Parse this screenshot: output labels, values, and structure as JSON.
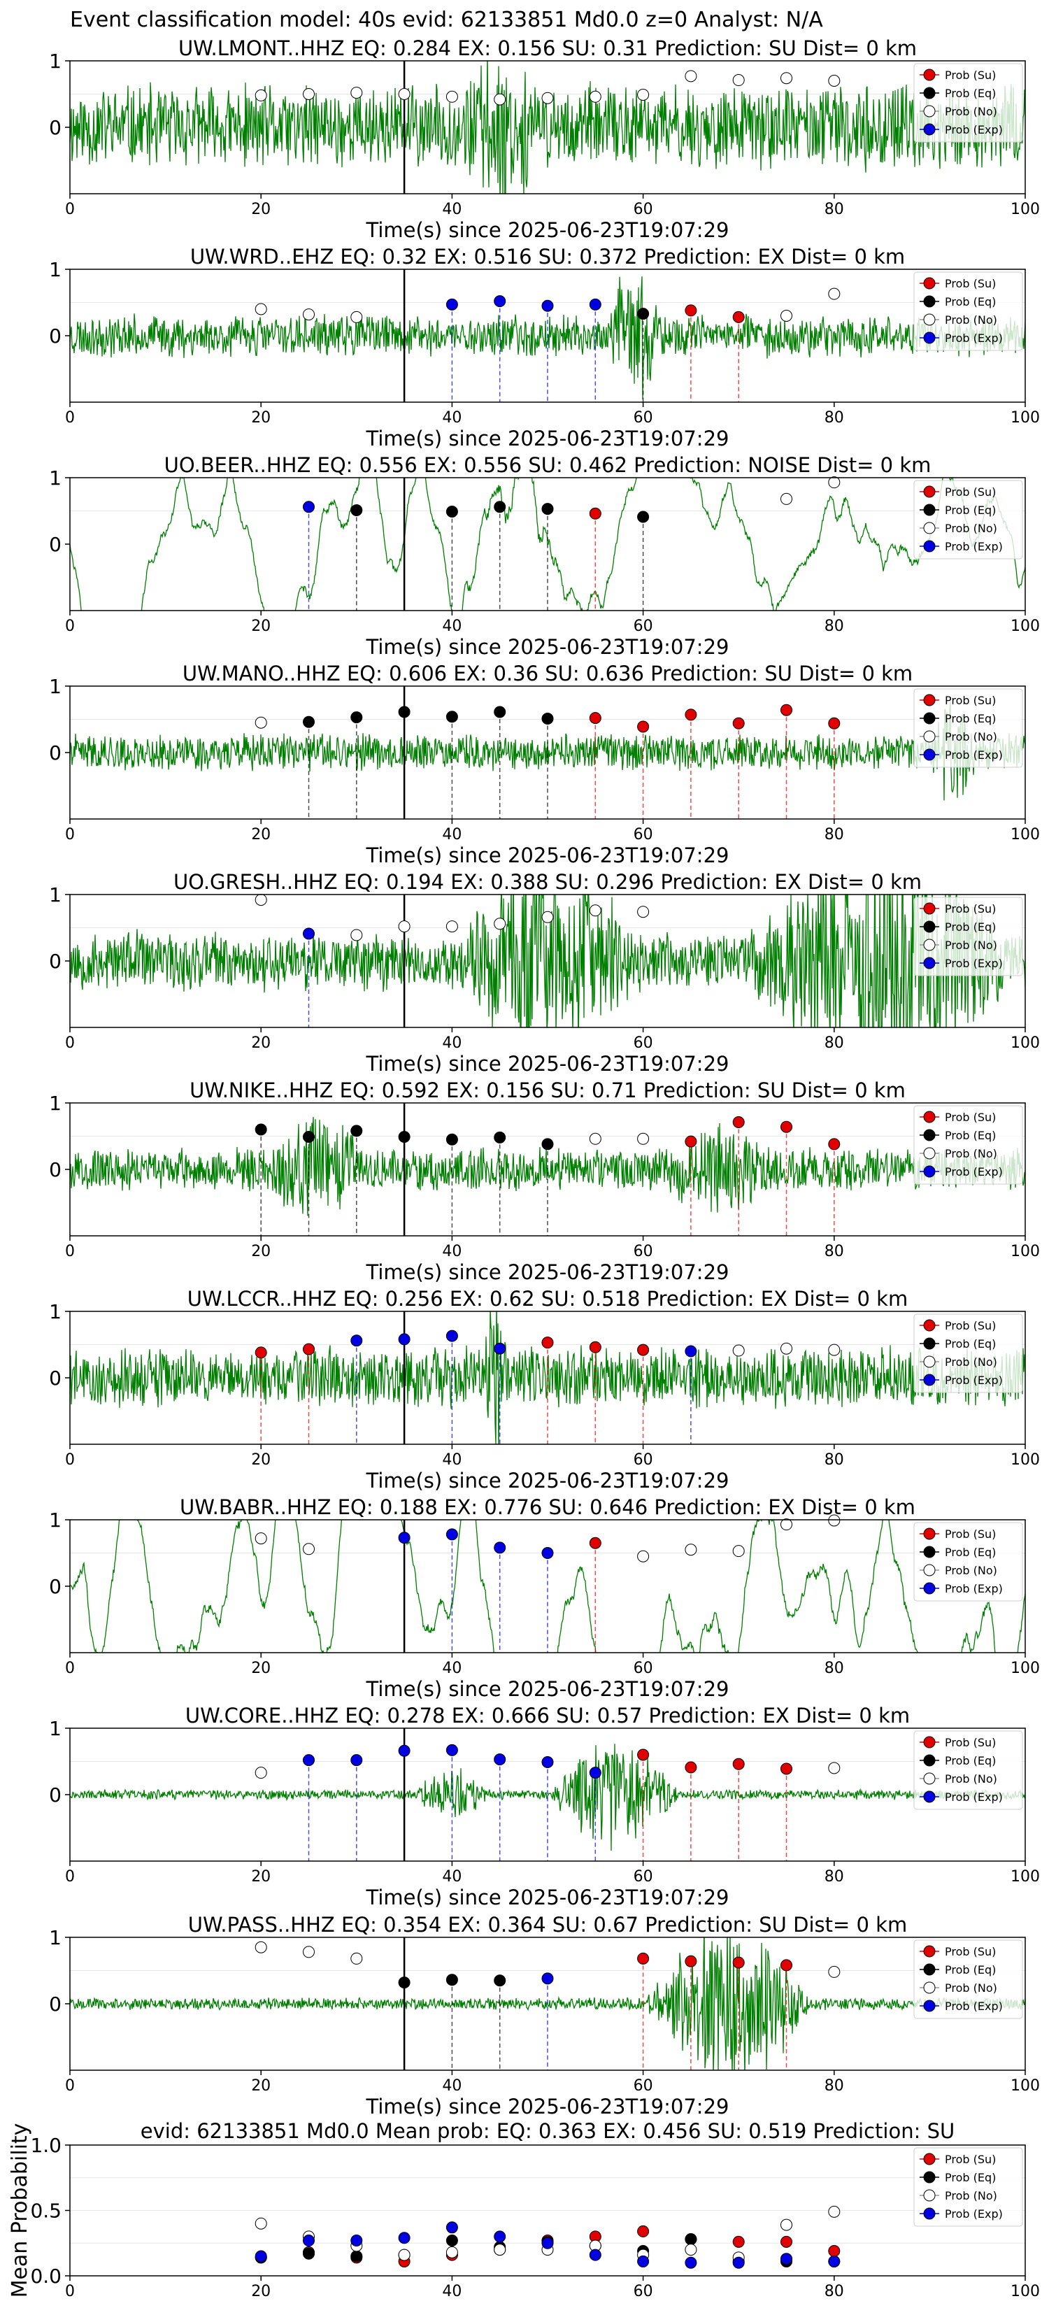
{
  "figure": {
    "suptitle": "Event classification model: 40s evid: 62133851 Md0.0 z=0 Analyst: N/A",
    "xlabel": "Time(s) since 2025-06-23T19:07:29",
    "legend": [
      {
        "label": "Prob (Su)",
        "face": "#e00000"
      },
      {
        "label": "Prob (Eq)",
        "face": "#000000"
      },
      {
        "label": "Prob (No)",
        "face": "#ffffff"
      },
      {
        "label": "Prob (Exp)",
        "face": "#0000e0"
      }
    ],
    "colors": {
      "waveform": "#008000",
      "su": "#e00000",
      "eq": "#000000",
      "no": "#ffffff",
      "exp": "#0000e0",
      "pick": "#000000"
    }
  },
  "chart_data": [
    {
      "type": "line",
      "station": "UW.LMONT..HHZ",
      "title": "UW.LMONT..HHZ   EQ: 0.284  EX: 0.156  SU: 0.31   Prediction: SU    Dist= 0 km",
      "xlim": [
        0,
        100
      ],
      "x_ticks": [
        0,
        20,
        40,
        60,
        80,
        100
      ],
      "y_ticks": [
        0,
        1
      ],
      "pick_time": 35,
      "wave": {
        "amp": 0.7,
        "style": "noise",
        "seed": 11,
        "bursts": [
          [
            40,
            50,
            1.0
          ]
        ]
      },
      "points": [
        {
          "t": 20,
          "cls": "no",
          "p": 0.48
        },
        {
          "t": 25,
          "cls": "no",
          "p": 0.5
        },
        {
          "t": 30,
          "cls": "no",
          "p": 0.52
        },
        {
          "t": 35,
          "cls": "no",
          "p": 0.5
        },
        {
          "t": 40,
          "cls": "no",
          "p": 0.46
        },
        {
          "t": 45,
          "cls": "no",
          "p": 0.42
        },
        {
          "t": 50,
          "cls": "no",
          "p": 0.44
        },
        {
          "t": 55,
          "cls": "no",
          "p": 0.46
        },
        {
          "t": 60,
          "cls": "no",
          "p": 0.49
        },
        {
          "t": 65,
          "cls": "no",
          "p": 0.77
        },
        {
          "t": 70,
          "cls": "no",
          "p": 0.71
        },
        {
          "t": 75,
          "cls": "no",
          "p": 0.74
        },
        {
          "t": 80,
          "cls": "no",
          "p": 0.7
        }
      ]
    },
    {
      "type": "line",
      "station": "UW.WRD..EHZ",
      "title": "UW.WRD..EHZ   EQ: 0.32  EX: 0.516  SU: 0.372   Prediction: EX    Dist= 0 km",
      "xlim": [
        0,
        100
      ],
      "x_ticks": [
        0,
        20,
        40,
        60,
        80,
        100
      ],
      "y_ticks": [
        0,
        1
      ],
      "pick_time": 35,
      "wave": {
        "amp": 0.35,
        "style": "noise",
        "seed": 23,
        "bursts": [
          [
            56,
            62,
            1.1
          ]
        ]
      },
      "points": [
        {
          "t": 20,
          "cls": "no",
          "p": 0.4
        },
        {
          "t": 25,
          "cls": "no",
          "p": 0.32
        },
        {
          "t": 30,
          "cls": "no",
          "p": 0.28
        },
        {
          "t": 40,
          "cls": "exp",
          "p": 0.47
        },
        {
          "t": 45,
          "cls": "exp",
          "p": 0.52
        },
        {
          "t": 50,
          "cls": "exp",
          "p": 0.45
        },
        {
          "t": 55,
          "cls": "exp",
          "p": 0.47
        },
        {
          "t": 60,
          "cls": "eq",
          "p": 0.33
        },
        {
          "t": 65,
          "cls": "su",
          "p": 0.38
        },
        {
          "t": 70,
          "cls": "su",
          "p": 0.28
        },
        {
          "t": 75,
          "cls": "no",
          "p": 0.3
        },
        {
          "t": 80,
          "cls": "no",
          "p": 0.63
        }
      ]
    },
    {
      "type": "line",
      "station": "UO.BEER..HHZ",
      "title": "UO.BEER..HHZ   EQ: 0.556  EX: 0.556  SU: 0.462   Prediction: NOISE    Dist= 0 km",
      "xlim": [
        0,
        100
      ],
      "x_ticks": [
        0,
        20,
        40,
        60,
        80,
        100
      ],
      "y_ticks": [
        0,
        1
      ],
      "pick_time": 35,
      "wave": {
        "amp": 0.55,
        "style": "smooth",
        "seed": 37,
        "bursts": [
          [
            38,
            55,
            0.9
          ]
        ]
      },
      "points": [
        {
          "t": 25,
          "cls": "exp",
          "p": 0.56
        },
        {
          "t": 30,
          "cls": "eq",
          "p": 0.51
        },
        {
          "t": 40,
          "cls": "eq",
          "p": 0.49
        },
        {
          "t": 45,
          "cls": "eq",
          "p": 0.56
        },
        {
          "t": 50,
          "cls": "eq",
          "p": 0.53
        },
        {
          "t": 55,
          "cls": "su",
          "p": 0.46
        },
        {
          "t": 60,
          "cls": "eq",
          "p": 0.41
        },
        {
          "t": 75,
          "cls": "no",
          "p": 0.68
        },
        {
          "t": 80,
          "cls": "no",
          "p": 0.93
        }
      ]
    },
    {
      "type": "line",
      "station": "UW.MANO..HHZ",
      "title": "UW.MANO..HHZ   EQ: 0.606  EX: 0.36  SU: 0.636   Prediction: SU    Dist= 0 km",
      "xlim": [
        0,
        100
      ],
      "x_ticks": [
        0,
        20,
        40,
        60,
        80,
        100
      ],
      "y_ticks": [
        0,
        1
      ],
      "pick_time": 35,
      "wave": {
        "amp": 0.3,
        "style": "noise",
        "seed": 41,
        "bursts": [
          [
            90,
            95,
            0.9
          ]
        ]
      },
      "points": [
        {
          "t": 20,
          "cls": "no",
          "p": 0.45
        },
        {
          "t": 25,
          "cls": "eq",
          "p": 0.46
        },
        {
          "t": 30,
          "cls": "eq",
          "p": 0.53
        },
        {
          "t": 35,
          "cls": "eq",
          "p": 0.61
        },
        {
          "t": 40,
          "cls": "eq",
          "p": 0.54
        },
        {
          "t": 45,
          "cls": "eq",
          "p": 0.61
        },
        {
          "t": 50,
          "cls": "eq",
          "p": 0.51
        },
        {
          "t": 55,
          "cls": "su",
          "p": 0.52
        },
        {
          "t": 60,
          "cls": "su",
          "p": 0.39
        },
        {
          "t": 65,
          "cls": "su",
          "p": 0.57
        },
        {
          "t": 70,
          "cls": "su",
          "p": 0.44
        },
        {
          "t": 75,
          "cls": "su",
          "p": 0.64
        },
        {
          "t": 80,
          "cls": "su",
          "p": 0.44
        }
      ]
    },
    {
      "type": "line",
      "station": "UO.GRESH..HHZ",
      "title": "UO.GRESH..HHZ   EQ: 0.194  EX: 0.388  SU: 0.296   Prediction: EX    Dist= 0 km",
      "xlim": [
        0,
        100
      ],
      "x_ticks": [
        0,
        20,
        40,
        60,
        80,
        100
      ],
      "y_ticks": [
        0,
        1
      ],
      "pick_time": 35,
      "wave": {
        "amp": 0.5,
        "style": "noise",
        "seed": 53,
        "bursts": [
          [
            40,
            60,
            1.6
          ],
          [
            70,
            100,
            1.8
          ]
        ]
      },
      "points": [
        {
          "t": 20,
          "cls": "no",
          "p": 0.92
        },
        {
          "t": 25,
          "cls": "exp",
          "p": 0.41
        },
        {
          "t": 30,
          "cls": "no",
          "p": 0.39
        },
        {
          "t": 35,
          "cls": "no",
          "p": 0.52
        },
        {
          "t": 40,
          "cls": "no",
          "p": 0.52
        },
        {
          "t": 45,
          "cls": "no",
          "p": 0.56
        },
        {
          "t": 50,
          "cls": "no",
          "p": 0.66
        },
        {
          "t": 55,
          "cls": "no",
          "p": 0.76
        },
        {
          "t": 60,
          "cls": "no",
          "p": 0.74
        }
      ]
    },
    {
      "type": "line",
      "station": "UW.NIKE..HHZ",
      "title": "UW.NIKE..HHZ   EQ: 0.592  EX: 0.156  SU: 0.71   Prediction: SU    Dist= 0 km",
      "xlim": [
        0,
        100
      ],
      "x_ticks": [
        0,
        20,
        40,
        60,
        80,
        100
      ],
      "y_ticks": [
        0,
        1
      ],
      "pick_time": 35,
      "wave": {
        "amp": 0.35,
        "style": "noise",
        "seed": 67,
        "bursts": [
          [
            20,
            32,
            0.7
          ],
          [
            60,
            75,
            0.6
          ]
        ]
      },
      "points": [
        {
          "t": 20,
          "cls": "eq",
          "p": 0.6
        },
        {
          "t": 25,
          "cls": "eq",
          "p": 0.49
        },
        {
          "t": 30,
          "cls": "eq",
          "p": 0.58
        },
        {
          "t": 35,
          "cls": "eq",
          "p": 0.49
        },
        {
          "t": 40,
          "cls": "eq",
          "p": 0.45
        },
        {
          "t": 45,
          "cls": "eq",
          "p": 0.48
        },
        {
          "t": 50,
          "cls": "eq",
          "p": 0.38
        },
        {
          "t": 55,
          "cls": "no",
          "p": 0.46
        },
        {
          "t": 60,
          "cls": "no",
          "p": 0.46
        },
        {
          "t": 65,
          "cls": "su",
          "p": 0.42
        },
        {
          "t": 70,
          "cls": "su",
          "p": 0.71
        },
        {
          "t": 75,
          "cls": "su",
          "p": 0.64
        },
        {
          "t": 80,
          "cls": "su",
          "p": 0.38
        }
      ]
    },
    {
      "type": "line",
      "station": "UW.LCCR..HHZ",
      "title": "UW.LCCR..HHZ   EQ: 0.256  EX: 0.62  SU: 0.518   Prediction: EX    Dist= 0 km",
      "xlim": [
        0,
        100
      ],
      "x_ticks": [
        0,
        20,
        40,
        60,
        80,
        100
      ],
      "y_ticks": [
        0,
        1
      ],
      "pick_time": 35,
      "wave": {
        "amp": 0.5,
        "style": "noise",
        "seed": 79,
        "bursts": [
          [
            43,
            46,
            1.2
          ]
        ]
      },
      "points": [
        {
          "t": 20,
          "cls": "su",
          "p": 0.38
        },
        {
          "t": 25,
          "cls": "su",
          "p": 0.43
        },
        {
          "t": 30,
          "cls": "exp",
          "p": 0.56
        },
        {
          "t": 35,
          "cls": "exp",
          "p": 0.58
        },
        {
          "t": 40,
          "cls": "exp",
          "p": 0.63
        },
        {
          "t": 45,
          "cls": "exp",
          "p": 0.44
        },
        {
          "t": 50,
          "cls": "su",
          "p": 0.53
        },
        {
          "t": 55,
          "cls": "su",
          "p": 0.46
        },
        {
          "t": 60,
          "cls": "su",
          "p": 0.42
        },
        {
          "t": 65,
          "cls": "exp",
          "p": 0.4
        },
        {
          "t": 70,
          "cls": "no",
          "p": 0.41
        },
        {
          "t": 75,
          "cls": "no",
          "p": 0.44
        },
        {
          "t": 80,
          "cls": "no",
          "p": 0.42
        }
      ]
    },
    {
      "type": "line",
      "station": "UW.BABR..HHZ",
      "title": "UW.BABR..HHZ   EQ: 0.188  EX: 0.776  SU: 0.646   Prediction: EX    Dist= 0 km",
      "xlim": [
        0,
        100
      ],
      "x_ticks": [
        0,
        20,
        40,
        60,
        80,
        100
      ],
      "y_ticks": [
        0,
        1
      ],
      "pick_time": 35,
      "wave": {
        "amp": 0.7,
        "style": "smooth",
        "seed": 83,
        "bursts": []
      },
      "points": [
        {
          "t": 20,
          "cls": "no",
          "p": 0.72
        },
        {
          "t": 25,
          "cls": "no",
          "p": 0.56
        },
        {
          "t": 35,
          "cls": "exp",
          "p": 0.73
        },
        {
          "t": 40,
          "cls": "exp",
          "p": 0.78
        },
        {
          "t": 45,
          "cls": "exp",
          "p": 0.58
        },
        {
          "t": 50,
          "cls": "exp",
          "p": 0.5
        },
        {
          "t": 55,
          "cls": "su",
          "p": 0.65
        },
        {
          "t": 60,
          "cls": "no",
          "p": 0.45
        },
        {
          "t": 65,
          "cls": "no",
          "p": 0.55
        },
        {
          "t": 70,
          "cls": "no",
          "p": 0.53
        },
        {
          "t": 75,
          "cls": "no",
          "p": 0.93
        },
        {
          "t": 80,
          "cls": "no",
          "p": 0.99
        }
      ]
    },
    {
      "type": "line",
      "station": "UW.CORE..HHZ",
      "title": "UW.CORE..HHZ   EQ: 0.278  EX: 0.666  SU: 0.57   Prediction: EX    Dist= 0 km",
      "xlim": [
        0,
        100
      ],
      "x_ticks": [
        0,
        20,
        40,
        60,
        80,
        100
      ],
      "y_ticks": [
        0,
        1
      ],
      "pick_time": 35,
      "wave": {
        "amp": 0.08,
        "style": "noise",
        "seed": 97,
        "bursts": [
          [
            36,
            44,
            0.4
          ],
          [
            50,
            64,
            1.0
          ]
        ]
      },
      "points": [
        {
          "t": 20,
          "cls": "no",
          "p": 0.33
        },
        {
          "t": 25,
          "cls": "exp",
          "p": 0.52
        },
        {
          "t": 30,
          "cls": "exp",
          "p": 0.52
        },
        {
          "t": 35,
          "cls": "exp",
          "p": 0.66
        },
        {
          "t": 40,
          "cls": "exp",
          "p": 0.67
        },
        {
          "t": 45,
          "cls": "exp",
          "p": 0.53
        },
        {
          "t": 50,
          "cls": "exp",
          "p": 0.49
        },
        {
          "t": 55,
          "cls": "exp",
          "p": 0.33
        },
        {
          "t": 60,
          "cls": "su",
          "p": 0.6
        },
        {
          "t": 65,
          "cls": "su",
          "p": 0.41
        },
        {
          "t": 70,
          "cls": "su",
          "p": 0.46
        },
        {
          "t": 75,
          "cls": "su",
          "p": 0.39
        },
        {
          "t": 80,
          "cls": "no",
          "p": 0.4
        }
      ]
    },
    {
      "type": "line",
      "station": "UW.PASS..HHZ",
      "title": "UW.PASS..HHZ   EQ: 0.354  EX: 0.364  SU: 0.67   Prediction: SU    Dist= 0 km",
      "xlim": [
        0,
        100
      ],
      "x_ticks": [
        0,
        20,
        40,
        60,
        80,
        100
      ],
      "y_ticks": [
        0,
        1
      ],
      "pick_time": 35,
      "wave": {
        "amp": 0.1,
        "style": "noise",
        "seed": 101,
        "bursts": [
          [
            60,
            78,
            1.3
          ]
        ]
      },
      "points": [
        {
          "t": 20,
          "cls": "no",
          "p": 0.85
        },
        {
          "t": 25,
          "cls": "no",
          "p": 0.78
        },
        {
          "t": 30,
          "cls": "no",
          "p": 0.68
        },
        {
          "t": 35,
          "cls": "eq",
          "p": 0.32
        },
        {
          "t": 40,
          "cls": "eq",
          "p": 0.36
        },
        {
          "t": 45,
          "cls": "eq",
          "p": 0.35
        },
        {
          "t": 50,
          "cls": "exp",
          "p": 0.38
        },
        {
          "t": 60,
          "cls": "su",
          "p": 0.68
        },
        {
          "t": 65,
          "cls": "su",
          "p": 0.64
        },
        {
          "t": 70,
          "cls": "su",
          "p": 0.62
        },
        {
          "t": 75,
          "cls": "su",
          "p": 0.58
        },
        {
          "t": 80,
          "cls": "no",
          "p": 0.48
        }
      ]
    },
    {
      "type": "scatter",
      "title": "evid: 62133851  Md0.0   Mean prob:   EQ: 0.363  EX: 0.456  SU: 0.519   Prediction: SU",
      "ylabel": "Mean Probability",
      "xlim": [
        0,
        100
      ],
      "ylim": [
        0,
        1
      ],
      "x_ticks": [
        0,
        20,
        40,
        60,
        80,
        100
      ],
      "y_ticks": [
        0.0,
        0.5,
        1.0
      ],
      "series": [
        {
          "name": "Prob (Su)",
          "cls": "su",
          "x": [
            20,
            25,
            30,
            35,
            40,
            45,
            50,
            55,
            60,
            65,
            70,
            75,
            80
          ],
          "y": [
            0.14,
            0.18,
            0.14,
            0.11,
            0.16,
            0.2,
            0.27,
            0.3,
            0.34,
            0.28,
            0.26,
            0.26,
            0.19
          ]
        },
        {
          "name": "Prob (Eq)",
          "cls": "eq",
          "x": [
            20,
            25,
            30,
            35,
            40,
            45,
            50,
            55,
            60,
            65,
            70,
            75,
            80
          ],
          "y": [
            0.14,
            0.17,
            0.15,
            0.16,
            0.27,
            0.22,
            0.26,
            0.23,
            0.19,
            0.28,
            0.11,
            0.11,
            0.11
          ]
        },
        {
          "name": "Prob (No)",
          "cls": "no",
          "x": [
            20,
            25,
            30,
            35,
            40,
            45,
            50,
            55,
            60,
            65,
            70,
            75,
            80
          ],
          "y": [
            0.4,
            0.3,
            0.23,
            0.16,
            0.18,
            0.2,
            0.2,
            0.23,
            0.16,
            0.2,
            0.14,
            0.39,
            0.49
          ]
        },
        {
          "name": "Prob (Exp)",
          "cls": "exp",
          "x": [
            20,
            25,
            30,
            35,
            40,
            45,
            50,
            55,
            60,
            65,
            70,
            75,
            80
          ],
          "y": [
            0.15,
            0.27,
            0.27,
            0.29,
            0.37,
            0.3,
            0.25,
            0.16,
            0.11,
            0.1,
            0.1,
            0.13,
            0.11
          ]
        }
      ]
    }
  ]
}
